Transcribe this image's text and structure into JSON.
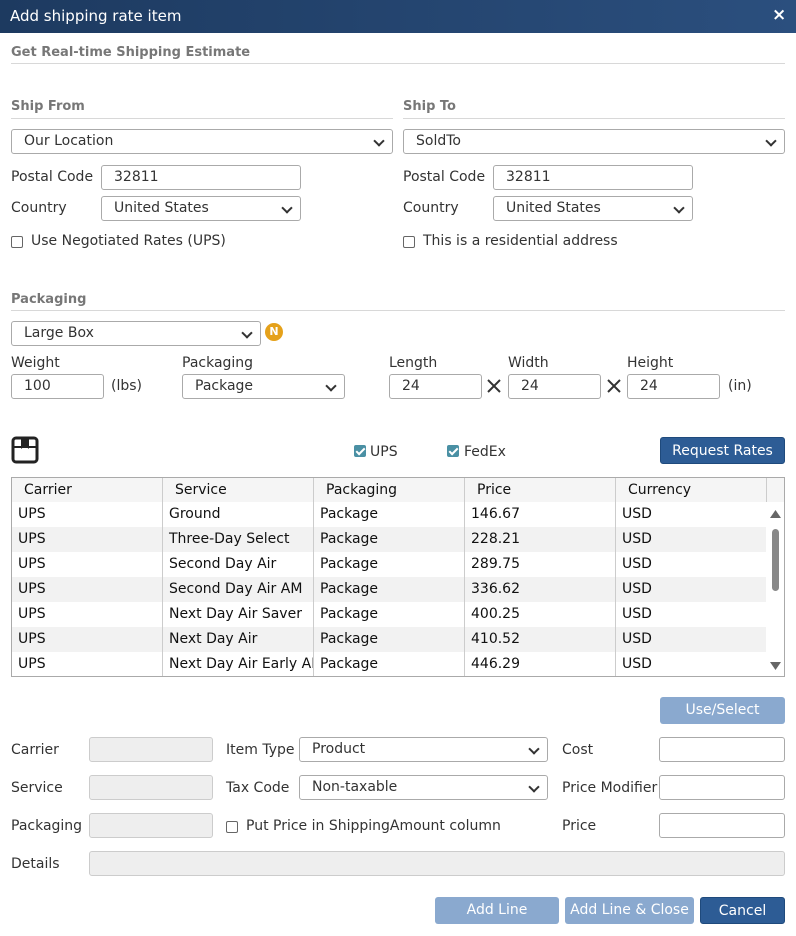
{
  "header": {
    "title": "Add shipping rate item",
    "close": "×"
  },
  "estimate": {
    "title": "Get Real-time Shipping Estimate"
  },
  "ship_from": {
    "title": "Ship From",
    "location": "Our Location",
    "postal_label": "Postal Code",
    "postal": "32811",
    "country_label": "Country",
    "country": "United States",
    "checkbox": "Use Negotiated Rates (UPS)"
  },
  "ship_to": {
    "title": "Ship To",
    "location": "SoldTo",
    "postal_label": "Postal Code",
    "postal": "32811",
    "country_label": "Country",
    "country": "United States",
    "checkbox": "This is a residential address"
  },
  "packaging": {
    "title": "Packaging",
    "box": "Large Box",
    "badge": "N",
    "weight_label": "Weight",
    "weight": "100",
    "weight_unit": "(lbs)",
    "packaging_label": "Packaging",
    "packaging": "Package",
    "length_label": "Length",
    "length": "24",
    "width_label": "Width",
    "width": "24",
    "height_label": "Height",
    "height": "24",
    "dim_unit": "(in)"
  },
  "carriers": {
    "ups": "UPS",
    "fedex": "FedEx",
    "request": "Request Rates"
  },
  "table": {
    "columns": [
      "Carrier",
      "Service",
      "Packaging",
      "Price",
      "Currency"
    ],
    "rows": [
      [
        "UPS",
        "Ground",
        "Package",
        "146.67",
        "USD"
      ],
      [
        "UPS",
        "Three-Day Select",
        "Package",
        "228.21",
        "USD"
      ],
      [
        "UPS",
        "Second Day Air",
        "Package",
        "289.75",
        "USD"
      ],
      [
        "UPS",
        "Second Day Air AM",
        "Package",
        "336.62",
        "USD"
      ],
      [
        "UPS",
        "Next Day Air Saver",
        "Package",
        "400.25",
        "USD"
      ],
      [
        "UPS",
        "Next Day Air",
        "Package",
        "410.52",
        "USD"
      ],
      [
        "UPS",
        "Next Day Air Early AM",
        "Package",
        "446.29",
        "USD"
      ]
    ]
  },
  "form": {
    "use_select": "Use/Select",
    "carrier_label": "Carrier",
    "service_label": "Service",
    "packaging_label": "Packaging",
    "details_label": "Details",
    "item_type_label": "Item Type",
    "item_type": "Product",
    "tax_code_label": "Tax Code",
    "tax_code": "Non-taxable",
    "put_price": "Put Price in ShippingAmount column",
    "cost_label": "Cost",
    "price_modifier_label": "Price Modifier",
    "price_label": "Price"
  },
  "buttons": {
    "add_line": "Add Line",
    "add_line_close": "Add Line & Close",
    "cancel": "Cancel"
  }
}
